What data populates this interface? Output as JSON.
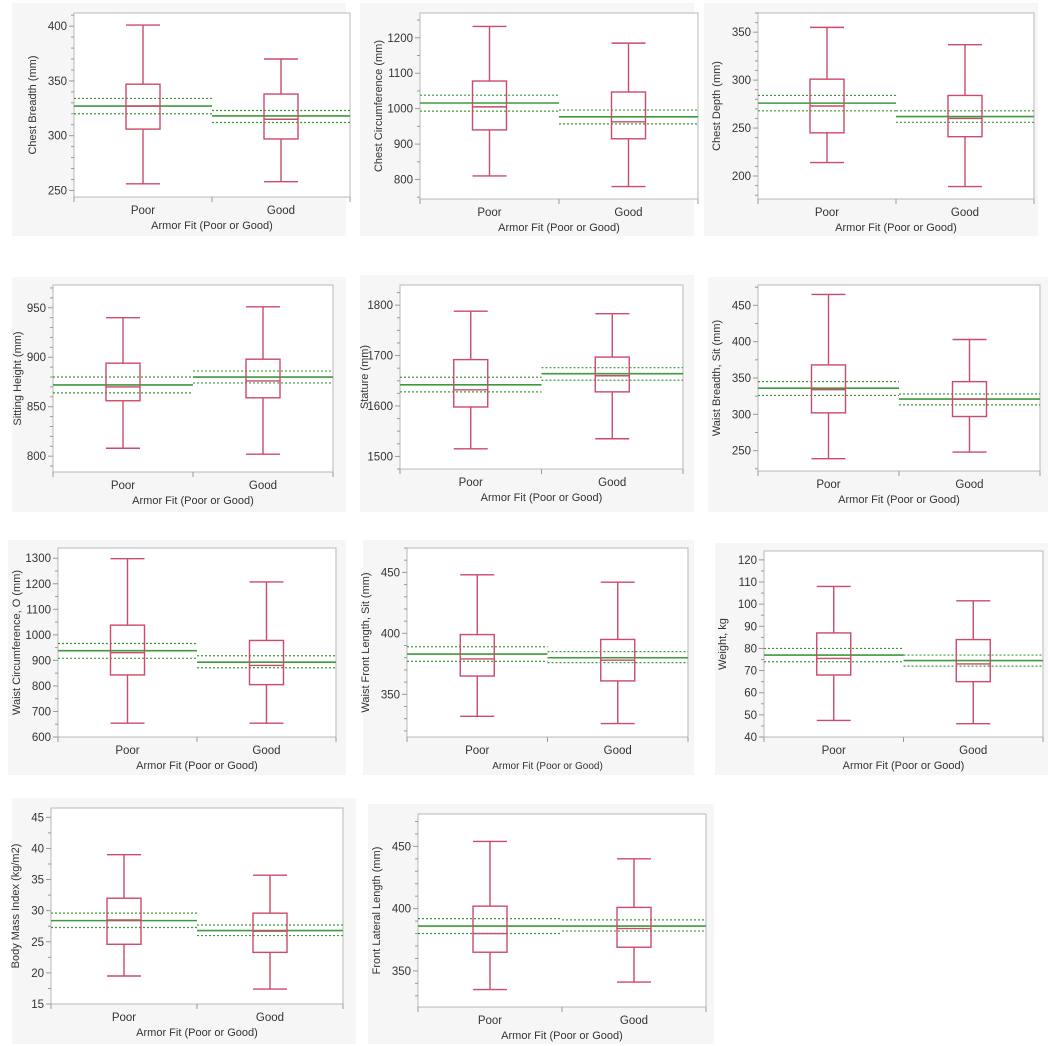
{
  "colors": {
    "box": "#cc4a6a",
    "median_dark": "#7a4a1a",
    "mean": "#3c9a3c",
    "ci": "#3c9a3c",
    "frame": "#b8b8b8",
    "panel_bg": "#f6f6f6",
    "plot_bg": "#ffffff",
    "text": "#333333"
  },
  "chart_data": [
    {
      "type": "box",
      "title": "",
      "ylabel": "Chest Breadth (mm)",
      "xlabel": "Armor Fit (Poor or  Good)",
      "categories": [
        "Poor",
        "Good"
      ],
      "ylim": [
        244,
        412
      ],
      "yticks": [
        250,
        300,
        350,
        400
      ],
      "minor_step": 10,
      "boxes": [
        {
          "min": 256,
          "q1": 306,
          "median": 327,
          "q3": 347,
          "max": 401
        },
        {
          "min": 258,
          "q1": 297,
          "median": 315,
          "q3": 338,
          "max": 370
        }
      ],
      "means": [
        327,
        318
      ],
      "mean_ci": [
        [
          320,
          334
        ],
        [
          312,
          323
        ]
      ]
    },
    {
      "type": "box",
      "ylabel": "Chest Circumference (mm)",
      "xlabel": "Armor Fit (Poor or Good)",
      "categories": [
        "Poor",
        "Good"
      ],
      "ylim": [
        745,
        1270
      ],
      "yticks": [
        800,
        900,
        1000,
        1100,
        1200
      ],
      "minor_step": 50,
      "boxes": [
        {
          "min": 810,
          "q1": 940,
          "median": 1005,
          "q3": 1078,
          "max": 1232
        },
        {
          "min": 780,
          "q1": 915,
          "median": 963,
          "q3": 1047,
          "max": 1185
        }
      ],
      "means": [
        1016,
        977
      ],
      "mean_ci": [
        [
          993,
          1038
        ],
        [
          957,
          996
        ]
      ]
    },
    {
      "type": "box",
      "ylabel": "Chest Depth (mm)",
      "xlabel": "Armor Fit (Poor or Good)",
      "categories": [
        "Poor",
        "Good"
      ],
      "ylim": [
        176,
        370
      ],
      "yticks": [
        200,
        250,
        300,
        350
      ],
      "minor_step": 10,
      "boxes": [
        {
          "min": 214,
          "q1": 245,
          "median": 273,
          "q3": 301,
          "max": 355
        },
        {
          "min": 189,
          "q1": 241,
          "median": 260,
          "q3": 284,
          "max": 337
        }
      ],
      "means": [
        276,
        262
      ],
      "mean_ci": [
        [
          268,
          284
        ],
        [
          256,
          268
        ]
      ]
    },
    {
      "type": "box",
      "ylabel": "Sitting Height (mm)",
      "xlabel": "Armor Fit (Poor or Good)",
      "categories": [
        "Poor",
        "Good"
      ],
      "ylim": [
        784,
        973
      ],
      "yticks": [
        800,
        850,
        900,
        950
      ],
      "minor_step": 10,
      "boxes": [
        {
          "min": 808,
          "q1": 856,
          "median": 870,
          "q3": 894,
          "max": 940
        },
        {
          "min": 802,
          "q1": 859,
          "median": 876,
          "q3": 898,
          "max": 951
        }
      ],
      "means": [
        872,
        880
      ],
      "mean_ci": [
        [
          864,
          880
        ],
        [
          874,
          886
        ]
      ]
    },
    {
      "type": "box",
      "ylabel": "Stature (mm)",
      "xlabel": "Armor Fit (Poor or Good)",
      "categories": [
        "Poor",
        "Good"
      ],
      "ylim": [
        1475,
        1840
      ],
      "yticks": [
        1500,
        1600,
        1700,
        1800
      ],
      "minor_step": 25,
      "boxes": [
        {
          "min": 1515,
          "q1": 1598,
          "median": 1632,
          "q3": 1692,
          "max": 1788
        },
        {
          "min": 1535,
          "q1": 1628,
          "median": 1660,
          "q3": 1697,
          "max": 1783
        }
      ],
      "means": [
        1642,
        1664
      ],
      "mean_ci": [
        [
          1628,
          1657
        ],
        [
          1651,
          1676
        ]
      ]
    },
    {
      "type": "box",
      "ylabel": "Waist Breadth, Sit (mm)",
      "xlabel": "Armor Fit (Poor or Good)",
      "categories": [
        "Poor",
        "Good"
      ],
      "ylim": [
        222,
        478
      ],
      "yticks": [
        250,
        300,
        350,
        400,
        450
      ],
      "minor_step": 25,
      "boxes": [
        {
          "min": 239,
          "q1": 302,
          "median": 334,
          "q3": 368,
          "max": 465
        },
        {
          "min": 248,
          "q1": 297,
          "median": 321,
          "q3": 345,
          "max": 403
        }
      ],
      "means": [
        336,
        321
      ],
      "mean_ci": [
        [
          326,
          345
        ],
        [
          313,
          328
        ]
      ]
    },
    {
      "type": "box",
      "ylabel": "Waist Circumference, O (mm)",
      "xlabel": "Armor Fit (Poor or Good)",
      "categories": [
        "Poor",
        "Good"
      ],
      "ylim": [
        600,
        1340
      ],
      "yticks": [
        600,
        700,
        800,
        900,
        1000,
        1100,
        1200,
        1300
      ],
      "minor_step": 50,
      "boxes": [
        {
          "min": 654,
          "q1": 843,
          "median": 930,
          "q3": 1038,
          "max": 1298
        },
        {
          "min": 654,
          "q1": 805,
          "median": 880,
          "q3": 978,
          "max": 1207
        }
      ],
      "means": [
        938,
        893
      ],
      "mean_ci": [
        [
          908,
          966
        ],
        [
          871,
          918
        ]
      ]
    },
    {
      "type": "box",
      "ylabel": "Waist Front Length, Sit (mm)",
      "xlabel": "Armor Fit (Poor or Good)",
      "categories": [
        "Poor",
        "Good"
      ],
      "ylim": [
        315,
        470
      ],
      "yticks": [
        350,
        400,
        450
      ],
      "minor_step": 10,
      "boxes": [
        {
          "min": 332,
          "q1": 365,
          "median": 379,
          "q3": 399,
          "max": 448
        },
        {
          "min": 326,
          "q1": 361,
          "median": 378,
          "q3": 395,
          "max": 442
        }
      ],
      "means": [
        383,
        380
      ],
      "mean_ci": [
        [
          377,
          389
        ],
        [
          376,
          385
        ]
      ]
    },
    {
      "type": "box",
      "ylabel": "Weight, kg",
      "xlabel": "Armor Fit (Poor or Good)",
      "categories": [
        "Poor",
        "Good"
      ],
      "ylim": [
        40,
        124
      ],
      "yticks": [
        40,
        50,
        60,
        70,
        80,
        90,
        100,
        110,
        120
      ],
      "minor_step": 5,
      "boxes": [
        {
          "min": 47.5,
          "q1": 68,
          "median": 75.5,
          "q3": 87,
          "max": 108
        },
        {
          "min": 46,
          "q1": 65,
          "median": 73,
          "q3": 84,
          "max": 101.5
        }
      ],
      "means": [
        77,
        74.5
      ],
      "mean_ci": [
        [
          74,
          80
        ],
        [
          72,
          77
        ]
      ]
    },
    {
      "type": "box",
      "ylabel": "Body Mass Index (kg/m2)",
      "xlabel": "Armor Fit (Poor or Good)",
      "categories": [
        "Poor",
        "Good"
      ],
      "ylim": [
        15,
        46.5
      ],
      "yticks": [
        15,
        20,
        25,
        30,
        35,
        40,
        45
      ],
      "minor_step": 2.5,
      "boxes": [
        {
          "min": 19.5,
          "q1": 24.6,
          "median": 28.5,
          "q3": 32,
          "max": 39
        },
        {
          "min": 17.4,
          "q1": 23.3,
          "median": 26.7,
          "q3": 29.6,
          "max": 35.7
        }
      ],
      "means": [
        28.4,
        26.8
      ],
      "mean_ci": [
        [
          27.3,
          29.6
        ],
        [
          26,
          27.7
        ]
      ]
    },
    {
      "type": "box",
      "ylabel": "Front Lateral Length (mm)",
      "xlabel": "Armor Fit (Poor or Good)",
      "categories": [
        "Poor",
        "Good"
      ],
      "ylim": [
        321,
        476
      ],
      "yticks": [
        350,
        400,
        450
      ],
      "minor_step": 10,
      "boxes": [
        {
          "min": 335,
          "q1": 365,
          "median": 380,
          "q3": 402,
          "max": 454
        },
        {
          "min": 341,
          "q1": 369,
          "median": 384,
          "q3": 401,
          "max": 440
        }
      ],
      "means": [
        386,
        386
      ],
      "mean_ci": [
        [
          380,
          392
        ],
        [
          382,
          391
        ]
      ]
    }
  ]
}
